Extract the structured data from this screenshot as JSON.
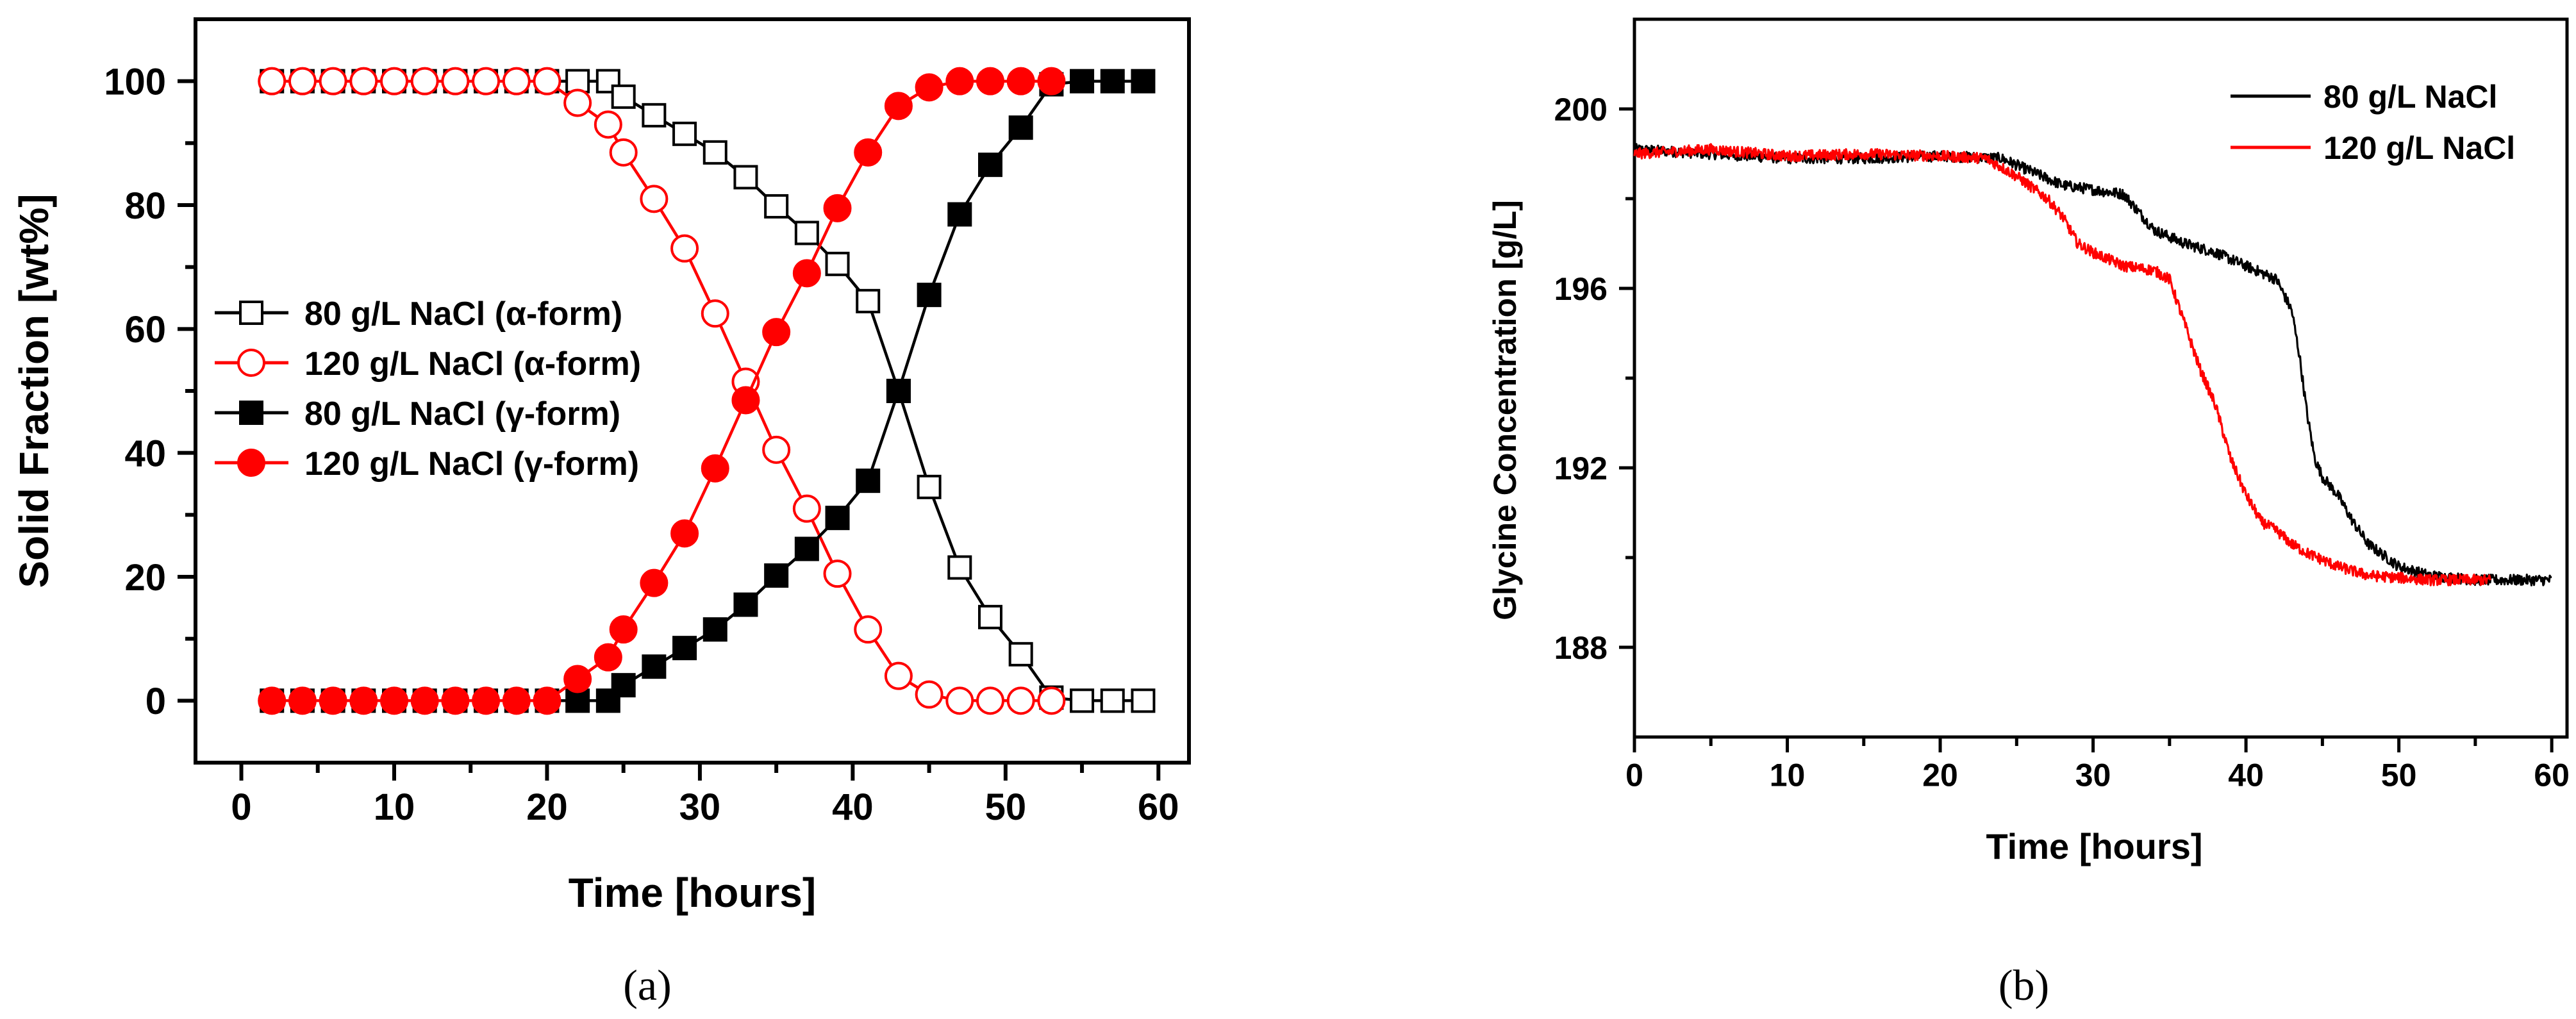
{
  "chart_data": [
    {
      "id": "a",
      "type": "line",
      "caption": "(a)",
      "title": "",
      "xlabel": "Time [hours]",
      "ylabel": "Solid Fraction [wt%]",
      "xlim": [
        -3,
        62
      ],
      "ylim": [
        -10,
        110
      ],
      "xticks": [
        0,
        10,
        20,
        30,
        40,
        50,
        60
      ],
      "yticks": [
        0,
        20,
        40,
        60,
        80,
        100
      ],
      "xtick_labels": [
        "0",
        "10",
        "20",
        "30",
        "40",
        "50",
        "60"
      ],
      "ytick_labels": [
        "0",
        "20",
        "40",
        "60",
        "80",
        "100"
      ],
      "legend_position": "center-left",
      "series": [
        {
          "name": "80   g/L NaCl (α-form)",
          "color": "#000000",
          "marker": "square",
          "fill": "none",
          "points": [
            [
              2,
              100
            ],
            [
              4,
              100
            ],
            [
              6,
              100
            ],
            [
              8,
              100
            ],
            [
              10,
              100
            ],
            [
              12,
              100
            ],
            [
              14,
              100
            ],
            [
              16,
              100
            ],
            [
              18,
              100
            ],
            [
              20,
              100
            ],
            [
              22,
              100
            ],
            [
              24,
              100
            ],
            [
              25,
              97.5
            ],
            [
              27,
              94.5
            ],
            [
              29,
              91.5
            ],
            [
              31,
              88.5
            ],
            [
              33,
              84.5
            ],
            [
              35,
              79.8
            ],
            [
              37,
              75.5
            ],
            [
              39,
              70.5
            ],
            [
              41,
              64.5
            ],
            [
              43,
              50
            ],
            [
              45,
              34.5
            ],
            [
              47,
              21.5
            ],
            [
              49,
              13.5
            ],
            [
              51,
              7.5
            ],
            [
              53,
              0.5
            ],
            [
              55,
              0
            ],
            [
              57,
              0
            ],
            [
              59,
              0
            ]
          ]
        },
        {
          "name": "120 g/L NaCl (α-form)",
          "color": "#ff0000",
          "marker": "circle",
          "fill": "none",
          "points": [
            [
              2,
              100
            ],
            [
              4,
              100
            ],
            [
              6,
              100
            ],
            [
              8,
              100
            ],
            [
              10,
              100
            ],
            [
              12,
              100
            ],
            [
              14,
              100
            ],
            [
              16,
              100
            ],
            [
              18,
              100
            ],
            [
              20,
              100
            ],
            [
              22,
              96.5
            ],
            [
              24,
              93
            ],
            [
              25,
              88.5
            ],
            [
              27,
              81
            ],
            [
              29,
              73
            ],
            [
              31,
              62.5
            ],
            [
              33,
              51.5
            ],
            [
              35,
              40.5
            ],
            [
              37,
              31
            ],
            [
              39,
              20.5
            ],
            [
              41,
              11.5
            ],
            [
              43,
              4
            ],
            [
              45,
              1
            ],
            [
              47,
              0
            ],
            [
              49,
              0
            ],
            [
              51,
              0
            ],
            [
              53,
              0
            ]
          ]
        },
        {
          "name": "80   g/L NaCl (γ-form)",
          "color": "#000000",
          "marker": "square",
          "fill": "solid",
          "points": [
            [
              2,
              0
            ],
            [
              4,
              0
            ],
            [
              6,
              0
            ],
            [
              8,
              0
            ],
            [
              10,
              0
            ],
            [
              12,
              0
            ],
            [
              14,
              0
            ],
            [
              16,
              0
            ],
            [
              18,
              0
            ],
            [
              20,
              0
            ],
            [
              22,
              0
            ],
            [
              24,
              0
            ],
            [
              25,
              2.5
            ],
            [
              27,
              5.5
            ],
            [
              29,
              8.5
            ],
            [
              31,
              11.5
            ],
            [
              33,
              15.5
            ],
            [
              35,
              20.2
            ],
            [
              37,
              24.5
            ],
            [
              39,
              29.5
            ],
            [
              41,
              35.5
            ],
            [
              43,
              50
            ],
            [
              45,
              65.5
            ],
            [
              47,
              78.5
            ],
            [
              49,
              86.5
            ],
            [
              51,
              92.5
            ],
            [
              53,
              99.5
            ],
            [
              55,
              100
            ],
            [
              57,
              100
            ],
            [
              59,
              100
            ]
          ]
        },
        {
          "name": "120 g/L NaCl (γ-form)",
          "color": "#ff0000",
          "marker": "circle",
          "fill": "solid",
          "points": [
            [
              2,
              0
            ],
            [
              4,
              0
            ],
            [
              6,
              0
            ],
            [
              8,
              0
            ],
            [
              10,
              0
            ],
            [
              12,
              0
            ],
            [
              14,
              0
            ],
            [
              16,
              0
            ],
            [
              18,
              0
            ],
            [
              20,
              0
            ],
            [
              22,
              3.5
            ],
            [
              24,
              7
            ],
            [
              25,
              11.5
            ],
            [
              27,
              19
            ],
            [
              29,
              27
            ],
            [
              31,
              37.5
            ],
            [
              33,
              48.5
            ],
            [
              35,
              59.5
            ],
            [
              37,
              69
            ],
            [
              39,
              79.5
            ],
            [
              41,
              88.5
            ],
            [
              43,
              96
            ],
            [
              45,
              99
            ],
            [
              47,
              100
            ],
            [
              49,
              100
            ],
            [
              51,
              100
            ],
            [
              53,
              100
            ]
          ]
        }
      ]
    },
    {
      "id": "b",
      "type": "line",
      "caption": "(b)",
      "title": "",
      "xlabel": "Time [hours]",
      "ylabel": "Glycine Concentration [g/L]",
      "xlim": [
        0,
        61
      ],
      "ylim": [
        186,
        202
      ],
      "xticks": [
        0,
        10,
        20,
        30,
        40,
        50,
        60
      ],
      "yticks": [
        188,
        192,
        196,
        200
      ],
      "xtick_labels": [
        "0",
        "10",
        "20",
        "30",
        "40",
        "50",
        "60"
      ],
      "ytick_labels": [
        "188",
        "192",
        "196",
        "200"
      ],
      "legend_position": "top-right",
      "series": [
        {
          "name": "80   g/L NaCl",
          "color": "#000000",
          "noise": 0.12,
          "x_end": 60,
          "points": [
            [
              0,
              199.1
            ],
            [
              5,
              199
            ],
            [
              10,
              198.9
            ],
            [
              15,
              198.9
            ],
            [
              20,
              198.95
            ],
            [
              24,
              198.9
            ],
            [
              26,
              198.6
            ],
            [
              28,
              198.3
            ],
            [
              30,
              198.2
            ],
            [
              32,
              198.1
            ],
            [
              33,
              197.7
            ],
            [
              34,
              197.3
            ],
            [
              36,
              197.0
            ],
            [
              38,
              196.8
            ],
            [
              40,
              196.5
            ],
            [
              42,
              196.2
            ],
            [
              43,
              195.5
            ],
            [
              43.5,
              194.5
            ],
            [
              44,
              193.2
            ],
            [
              44.5,
              192.2
            ],
            [
              45,
              191.8
            ],
            [
              46,
              191.4
            ],
            [
              47,
              190.8
            ],
            [
              48,
              190.3
            ],
            [
              50,
              189.8
            ],
            [
              52,
              189.6
            ],
            [
              55,
              189.5
            ],
            [
              60,
              189.5
            ]
          ]
        },
        {
          "name": "120 g/L NaCl",
          "color": "#ff0000",
          "noise": 0.12,
          "x_end": 56,
          "points": [
            [
              0,
              199.0
            ],
            [
              5,
              199.1
            ],
            [
              10,
              198.95
            ],
            [
              15,
              199
            ],
            [
              20,
              198.95
            ],
            [
              23,
              198.9
            ],
            [
              25,
              198.5
            ],
            [
              27,
              198.0
            ],
            [
              28,
              197.6
            ],
            [
              29,
              197.0
            ],
            [
              30,
              196.8
            ],
            [
              32,
              196.5
            ],
            [
              34,
              196.4
            ],
            [
              35,
              196.2
            ],
            [
              36,
              195.2
            ],
            [
              37,
              194.2
            ],
            [
              38,
              193.4
            ],
            [
              39,
              192.2
            ],
            [
              40,
              191.4
            ],
            [
              41,
              190.8
            ],
            [
              42,
              190.6
            ],
            [
              43,
              190.3
            ],
            [
              44,
              190.1
            ],
            [
              46,
              189.8
            ],
            [
              48,
              189.6
            ],
            [
              52,
              189.5
            ],
            [
              56,
              189.5
            ]
          ]
        }
      ]
    }
  ]
}
